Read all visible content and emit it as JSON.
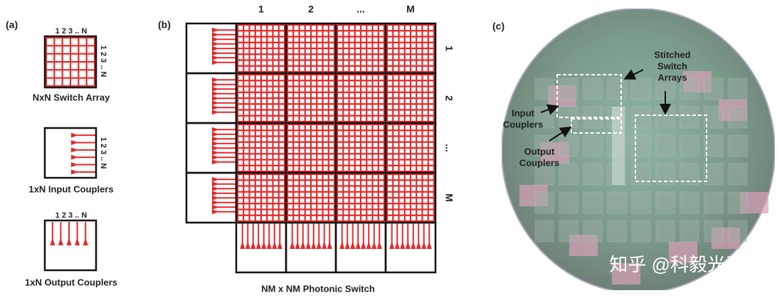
{
  "panel_a": {
    "label": "(a)",
    "switch_array": {
      "top_index": "1 2 3 .. N",
      "side_index": "1 2 3 .. N",
      "caption": "NxN Switch Array"
    },
    "input_couplers": {
      "side_index": "1 2 3 .. N",
      "caption": "1xN Input Couplers"
    },
    "output_couplers": {
      "top_index": "1 2 3 .. N",
      "caption": "1xN Output Couplers"
    }
  },
  "panel_b": {
    "label": "(b)",
    "column_labels": [
      "1",
      "2",
      "...",
      "M"
    ],
    "row_labels": [
      "1",
      "2",
      "...",
      "M"
    ],
    "caption": "NM x NM Photonic Switch"
  },
  "panel_c": {
    "label": "(c)",
    "stitched_label": [
      "Stitched",
      "Switch",
      "Arrays"
    ],
    "input_label": [
      "Input",
      "Couplers"
    ],
    "output_label": [
      "Output",
      "Couplers"
    ]
  },
  "watermark": "知乎 @科毅光开关"
}
